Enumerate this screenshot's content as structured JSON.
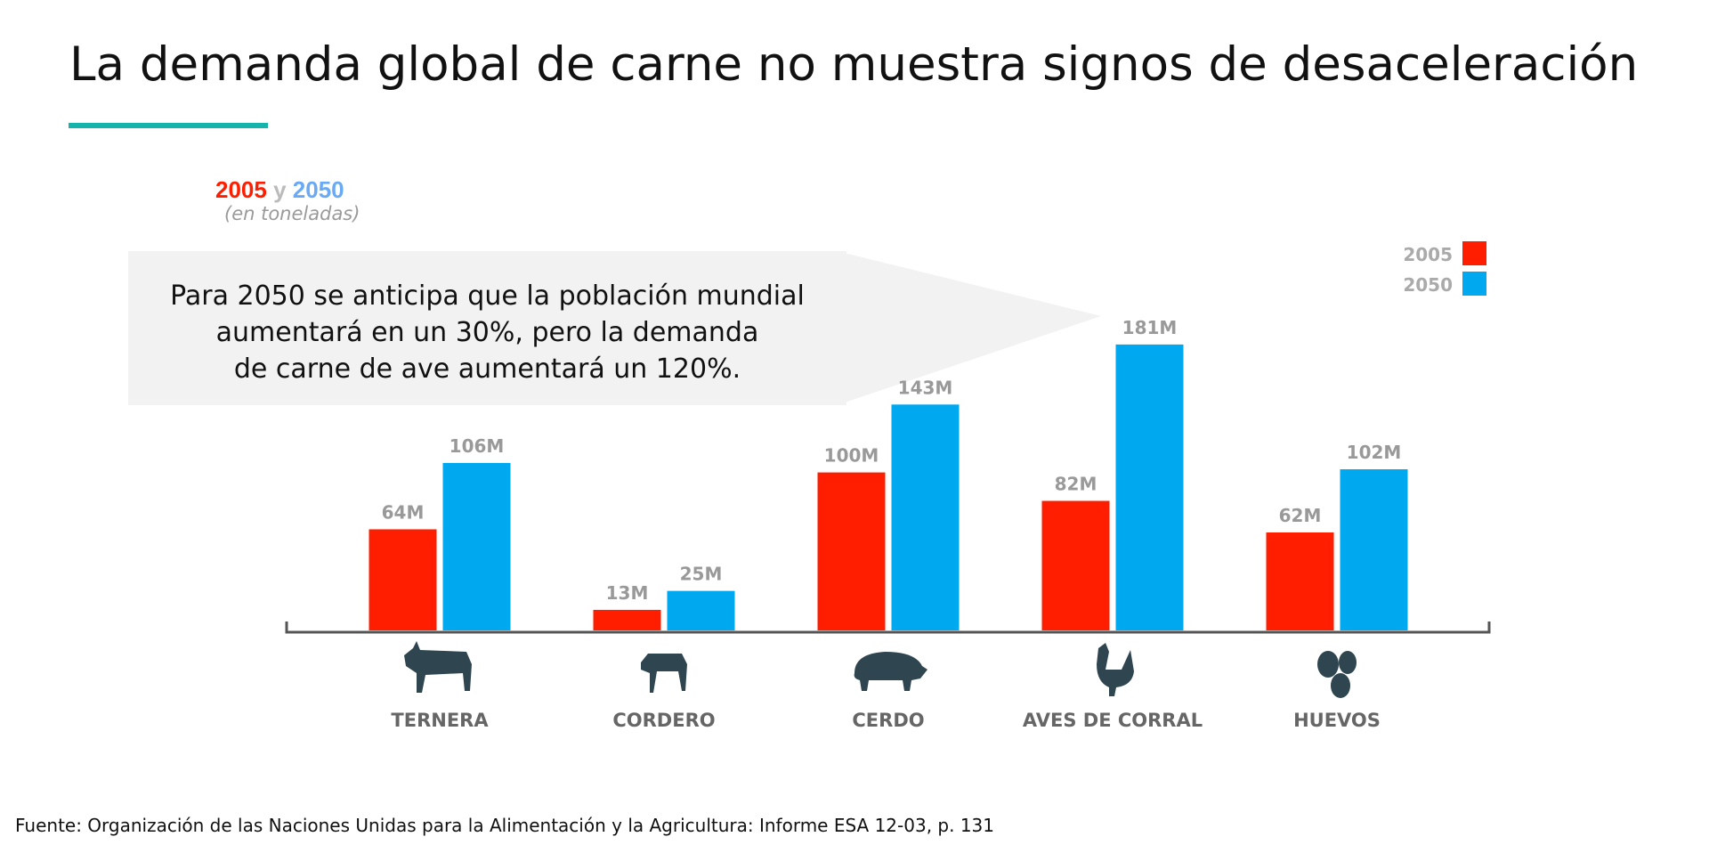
{
  "title": "La demanda global de carne no muestra signos de desaceleración",
  "header": {
    "year_a": "2005",
    "conj": "y",
    "year_b": "2050",
    "units": "(en toneladas)"
  },
  "callout": {
    "lines": [
      "Para 2050 se anticipa que la población mundial",
      "aumentará en un 30%, pero la demanda",
      "de carne de ave aumentará un 120%."
    ]
  },
  "footer": "Fuente: Organización de las Naciones Unidas para la Alimentación y la Agricultura: Informe ESA 12-03, p. 131",
  "colors": {
    "s2005": "#ff1e00",
    "s2050": "#00a8f0",
    "label": "#999999",
    "category": "#666666",
    "icon": "#2f4650",
    "accent": "#16b3ad"
  },
  "chart_data": {
    "type": "bar",
    "categories": [
      "TERNERA",
      "CORDERO",
      "CERDO",
      "AVES DE CORRAL",
      "HUEVOS"
    ],
    "icons": [
      "cow-icon",
      "lamb-icon",
      "pig-icon",
      "chicken-icon",
      "eggs-icon"
    ],
    "series": [
      {
        "name": "2005",
        "values": [
          64,
          13,
          100,
          82,
          62
        ],
        "labels": [
          "64M",
          "13M",
          "100M",
          "82M",
          "62M"
        ]
      },
      {
        "name": "2050",
        "values": [
          106,
          25,
          143,
          181,
          102
        ],
        "labels": [
          "106M",
          "25M",
          "143M",
          "181M",
          "102M"
        ]
      }
    ],
    "legend_position": "top-right",
    "grid": false
  }
}
